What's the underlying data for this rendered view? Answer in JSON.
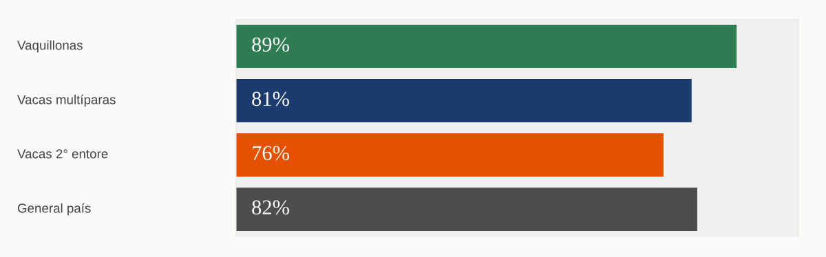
{
  "chart_data": {
    "type": "bar",
    "orientation": "horizontal",
    "categories": [
      "Vaquillonas",
      "Vacas multíparas",
      "Vacas 2° entore",
      "General país"
    ],
    "values": [
      89,
      81,
      76,
      82
    ],
    "colors": [
      "#2e7d52",
      "#1b3a6e",
      "#e65100",
      "#4d4d4d"
    ],
    "value_labels": [
      "89%",
      "81%",
      "76%",
      "82%"
    ],
    "xlim": [
      0,
      100
    ],
    "tick_labels": false
  }
}
